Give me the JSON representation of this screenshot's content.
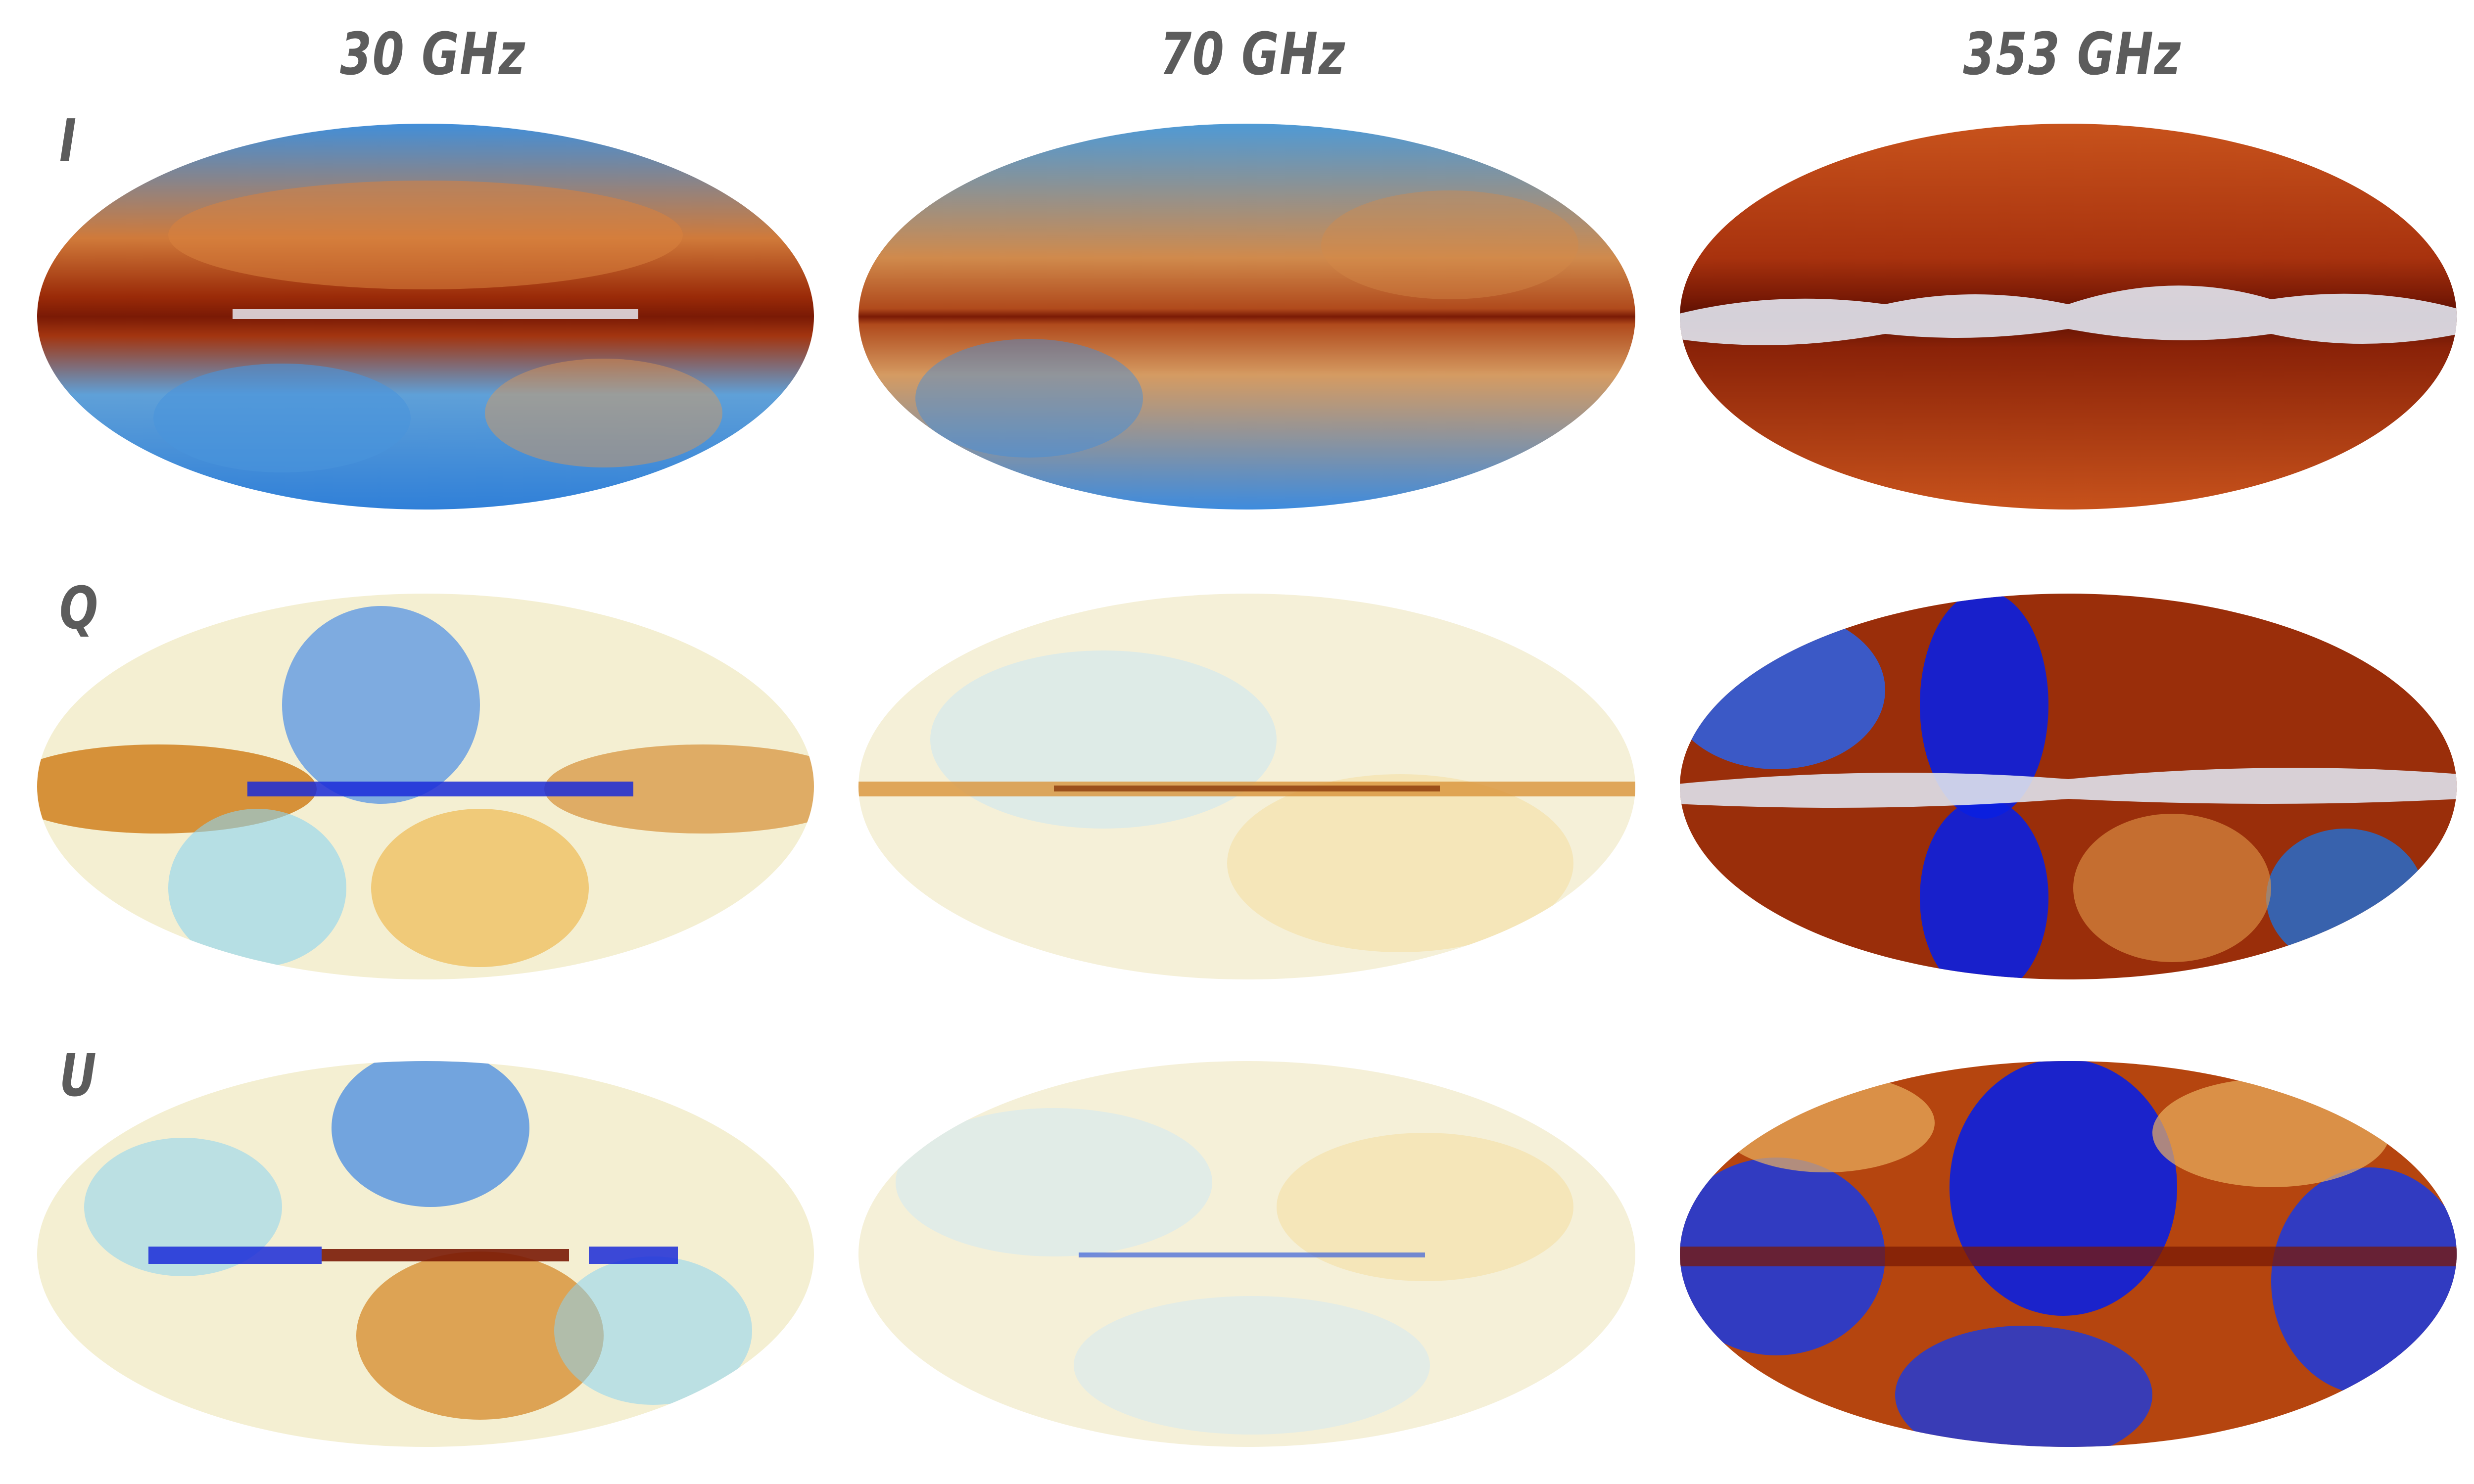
{
  "columns": [
    {
      "label": "30 GHz"
    },
    {
      "label": "70 GHz"
    },
    {
      "label": "353 GHz"
    }
  ],
  "rows": [
    {
      "label": "I"
    },
    {
      "label": "Q"
    },
    {
      "label": "U"
    }
  ],
  "colors": {
    "deep_red": "#7a1a05",
    "orange": "#d2691e",
    "yellow": "#f3c94a",
    "pale": "#f6f1d8",
    "light_blue": "#7fd0ef",
    "blue": "#1f6fd6",
    "deep_blue": "#0a1fe0",
    "white_band": "#d9dde8"
  }
}
